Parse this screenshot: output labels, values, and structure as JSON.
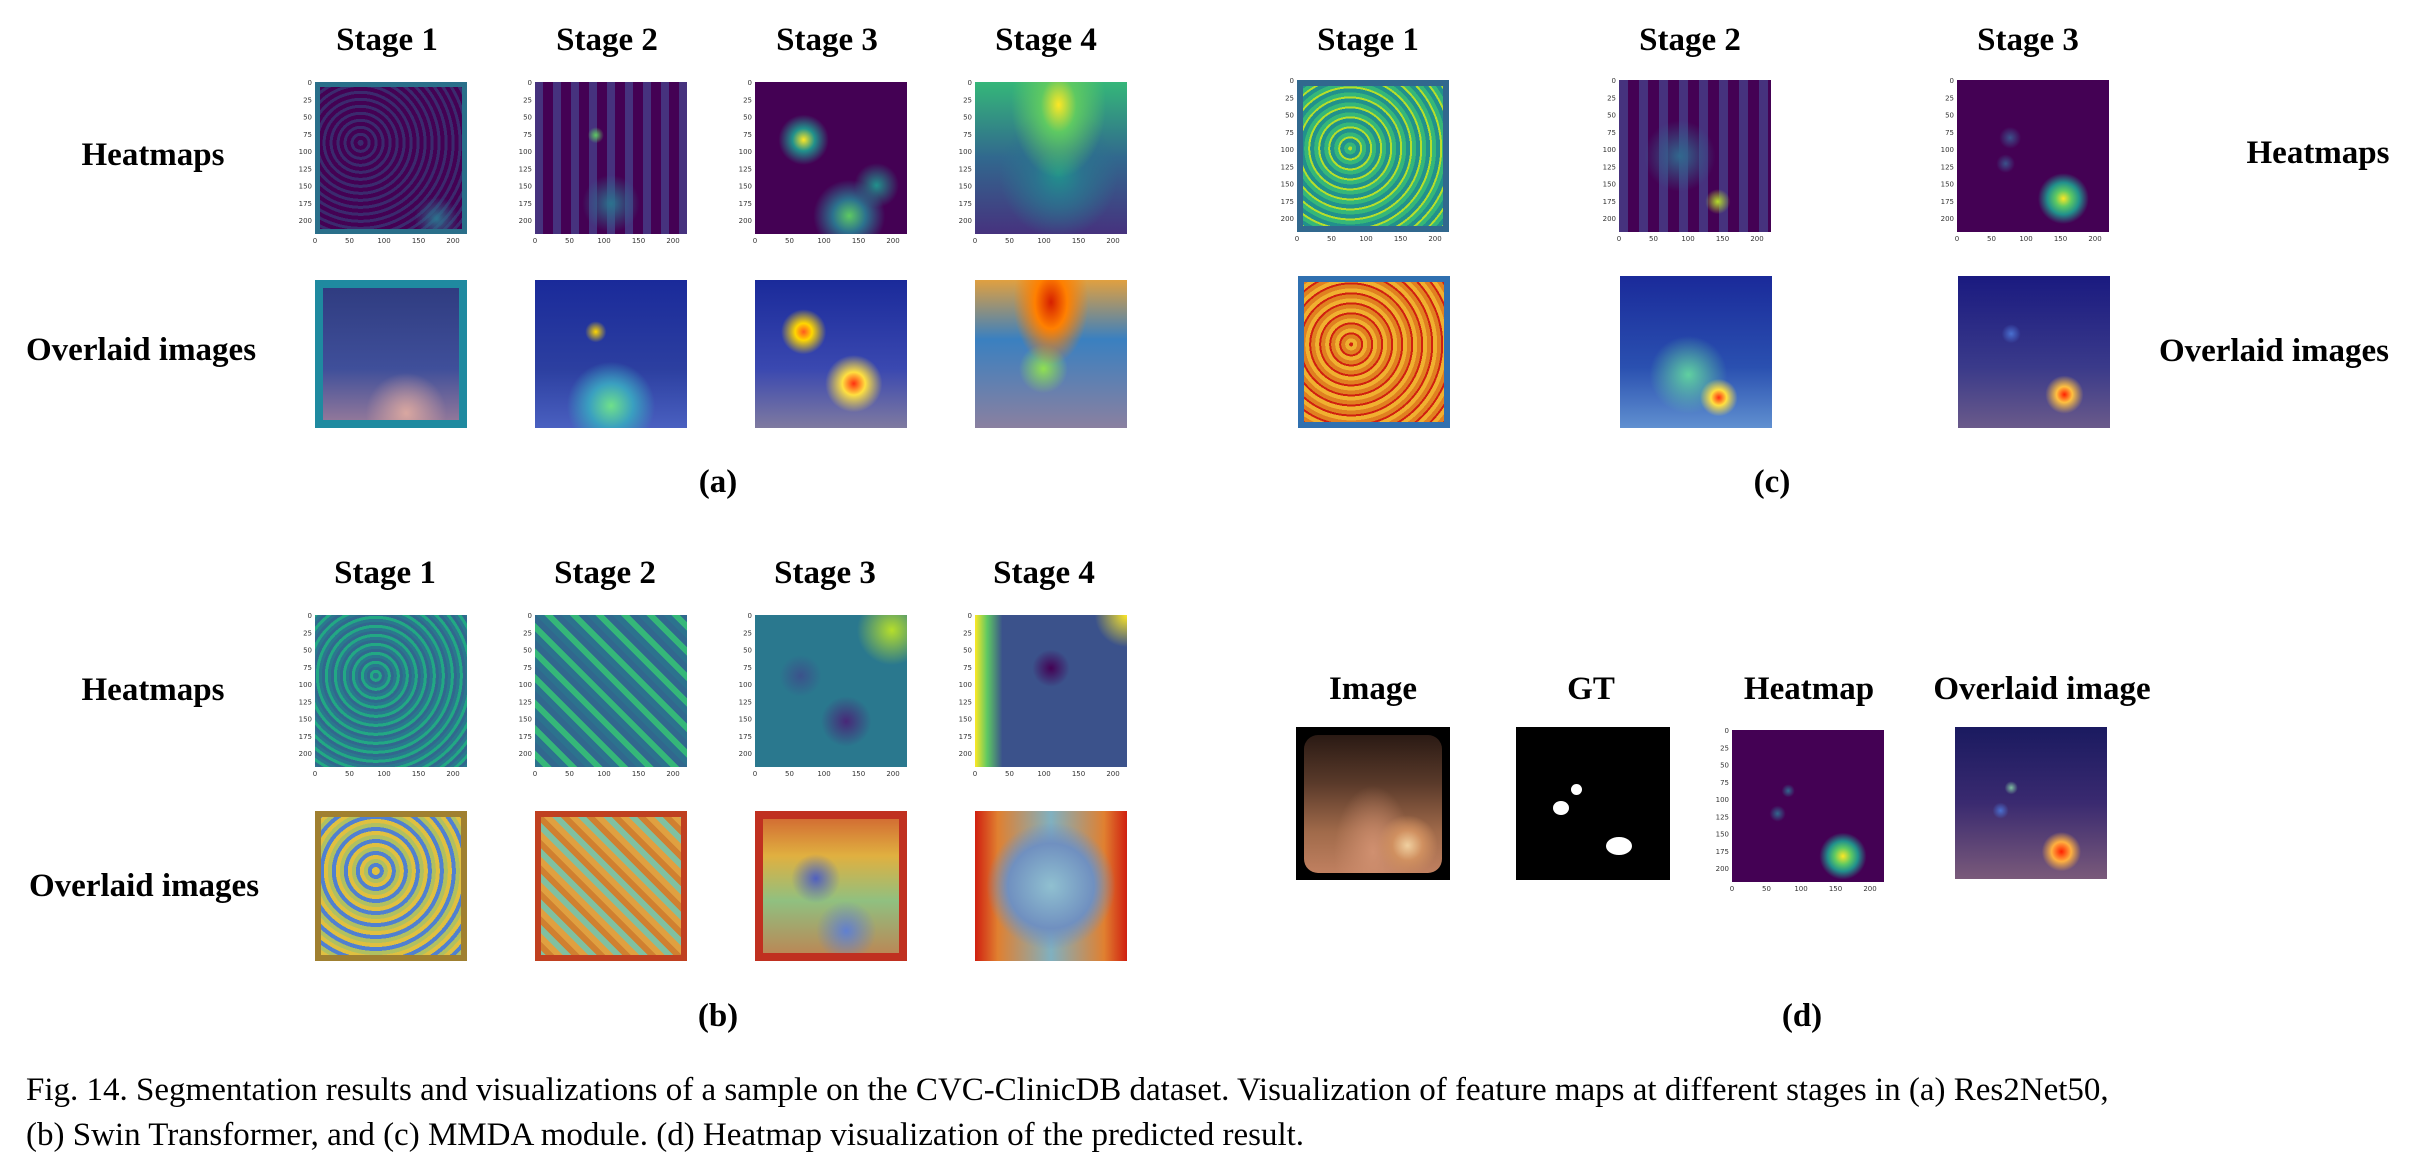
{
  "figure": {
    "caption_line1": "Fig. 14.   Segmentation results and visualizations of a sample on the CVC-ClinicDB dataset. Visualization of feature maps at different stages in (a) Res2Net50,",
    "caption_line2": "(b) Swin Transformer, and (c) MMDA module. (d) Heatmap visualization of the predicted result."
  },
  "panel_a": {
    "label": "(a)",
    "stages": [
      "Stage 1",
      "Stage 2",
      "Stage 3",
      "Stage 4"
    ],
    "row_labels": [
      "Heatmaps",
      "Overlaid images"
    ],
    "y_ticks": [
      "0",
      "25",
      "50",
      "75",
      "100",
      "125",
      "150",
      "175",
      "200"
    ],
    "x_ticks": [
      "0",
      "50",
      "100",
      "150",
      "200"
    ]
  },
  "panel_b": {
    "label": "(b)",
    "stages": [
      "Stage 1",
      "Stage 2",
      "Stage 3",
      "Stage 4"
    ],
    "row_labels": [
      "Heatmaps",
      "Overlaid images"
    ],
    "y_ticks": [
      "0",
      "25",
      "50",
      "75",
      "100",
      "125",
      "150",
      "175",
      "200"
    ],
    "x_ticks": [
      "0",
      "50",
      "100",
      "150",
      "200"
    ]
  },
  "panel_c": {
    "label": "(c)",
    "stages": [
      "Stage 1",
      "Stage 2",
      "Stage 3"
    ],
    "row_labels": [
      "Heatmaps",
      "Overlaid images"
    ],
    "y_ticks": [
      "0",
      "25",
      "50",
      "75",
      "100",
      "125",
      "150",
      "175",
      "200"
    ],
    "x_ticks": [
      "0",
      "50",
      "100",
      "150",
      "200"
    ]
  },
  "panel_d": {
    "label": "(d)",
    "columns": [
      "Image",
      "GT",
      "Heatmap",
      "Overlaid image"
    ],
    "y_ticks": [
      "0",
      "25",
      "50",
      "75",
      "100",
      "125",
      "150",
      "175",
      "200"
    ],
    "x_ticks": [
      "0",
      "50",
      "100",
      "150",
      "200"
    ]
  },
  "colors": {
    "viridis_dark": "#440154",
    "viridis_mid": "#21918c",
    "viridis_bright": "#fde725",
    "jet_blue": "#00007f",
    "jet_red": "#d62000"
  }
}
